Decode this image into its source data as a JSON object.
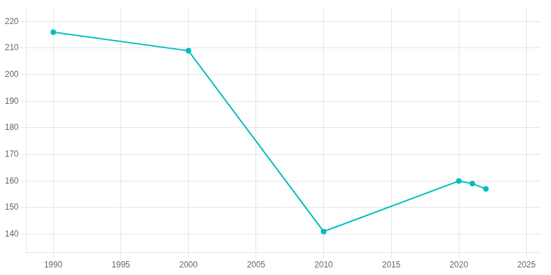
{
  "chart_data": {
    "type": "line",
    "x": [
      1990,
      2000,
      2010,
      2020,
      2021,
      2022
    ],
    "values": [
      216,
      209,
      141,
      160,
      159,
      157
    ],
    "color": "#00BEBE",
    "marker": "circle",
    "xlim": [
      1988,
      2026
    ],
    "ylim": [
      133,
      225
    ],
    "xticks": [
      1990,
      1995,
      2000,
      2005,
      2010,
      2015,
      2020,
      2025
    ],
    "yticks": [
      140,
      150,
      160,
      170,
      180,
      190,
      200,
      210,
      220
    ],
    "grid": true
  }
}
